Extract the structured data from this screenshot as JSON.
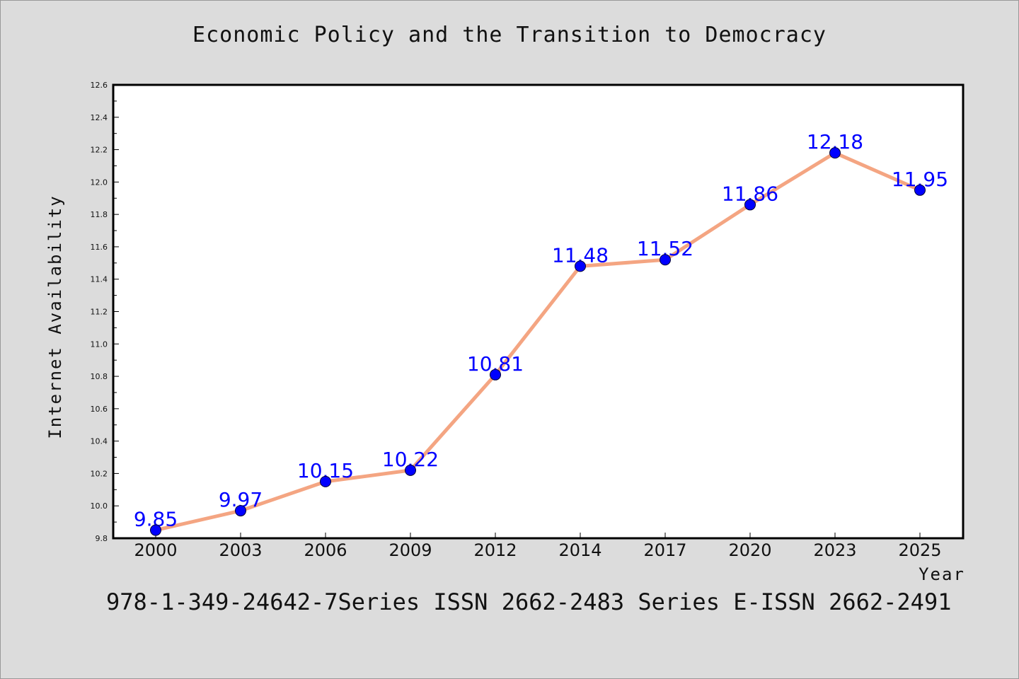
{
  "chart_data": {
    "type": "line",
    "title": "Economic Policy and the Transition to Democracy",
    "xlabel": "Year",
    "ylabel": "Internet Availability",
    "categories": [
      "2000",
      "2003",
      "2006",
      "2009",
      "2012",
      "2014",
      "2017",
      "2020",
      "2023",
      "2025"
    ],
    "series": [
      {
        "values": [
          9.85,
          9.97,
          10.15,
          10.22,
          10.81,
          11.48,
          11.52,
          11.86,
          12.18,
          11.95
        ]
      }
    ],
    "data_labels": [
      "9.85",
      "9.97",
      "10.15",
      "10.22",
      "10.81",
      "11.48",
      "11.52",
      "11.86",
      "12.18",
      "11.95"
    ],
    "ylim": [
      9.8,
      12.6
    ],
    "yticks": [
      "9.8",
      "10.0",
      "10.2",
      "10.4",
      "10.6",
      "10.8",
      "11.0",
      "11.2",
      "11.4",
      "11.6",
      "11.8",
      "12.0",
      "12.2",
      "12.4",
      "12.6"
    ],
    "grid": false,
    "line_color": "#f4a582",
    "marker_color": "#0000ff",
    "label_color": "#0000ff",
    "plot_background": "#ffffff",
    "page_background": "#dcdcdc"
  },
  "footer": "978-1-349-24642-7Series ISSN 2662-2483 Series E-ISSN 2662-2491"
}
